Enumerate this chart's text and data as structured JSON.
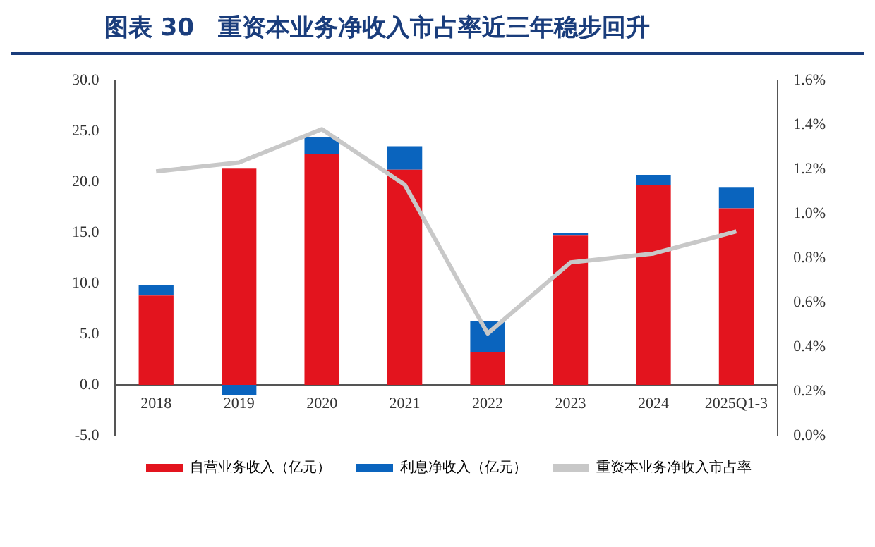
{
  "chart_data": {
    "type": "bar",
    "title": "图表 30　重资本业务净收入市占率近三年稳步回升",
    "categories": [
      "2018",
      "2019",
      "2020",
      "2021",
      "2022",
      "2023",
      "2024",
      "2025Q1-3"
    ],
    "stacked": true,
    "series": [
      {
        "name": "自营业务收入（亿元）",
        "color": "#e3141e",
        "values": [
          8.8,
          21.3,
          22.7,
          21.2,
          3.2,
          14.7,
          19.7,
          17.4
        ]
      },
      {
        "name": "利息净收入（亿元）",
        "color": "#0a64be",
        "values": [
          1.0,
          -1.0,
          1.7,
          2.3,
          3.1,
          0.3,
          1.0,
          2.1
        ]
      },
      {
        "name": "重资本业务净收入市占率",
        "type": "line",
        "axis": "y2",
        "color": "#c8c8c8",
        "values": [
          1.19,
          1.23,
          1.38,
          1.13,
          0.46,
          0.78,
          0.82,
          0.92
        ]
      }
    ],
    "ylim": [
      -5,
      30
    ],
    "yticks": [
      {
        "value": -5,
        "label": "-5.0"
      },
      {
        "value": 0,
        "label": "0.0"
      },
      {
        "value": 5,
        "label": "5.0"
      },
      {
        "value": 10,
        "label": "10.0"
      },
      {
        "value": 15,
        "label": "15.0"
      },
      {
        "value": 20,
        "label": "20.0"
      },
      {
        "value": 25,
        "label": "25.0"
      },
      {
        "value": 30,
        "label": "30.0"
      }
    ],
    "y2lim": [
      0,
      1.6
    ],
    "y2ticks": [
      {
        "value": 0,
        "label": "0.0%"
      },
      {
        "value": 0.2,
        "label": "0.2%"
      },
      {
        "value": 0.4,
        "label": "0.4%"
      },
      {
        "value": 0.6,
        "label": "0.6%"
      },
      {
        "value": 0.8,
        "label": "0.8%"
      },
      {
        "value": 1.0,
        "label": "1.0%"
      },
      {
        "value": 1.2,
        "label": "1.2%"
      },
      {
        "value": 1.4,
        "label": "1.4%"
      },
      {
        "value": 1.6,
        "label": "1.6%"
      }
    ],
    "grid": false,
    "legend": "bottom",
    "marker": "none"
  }
}
